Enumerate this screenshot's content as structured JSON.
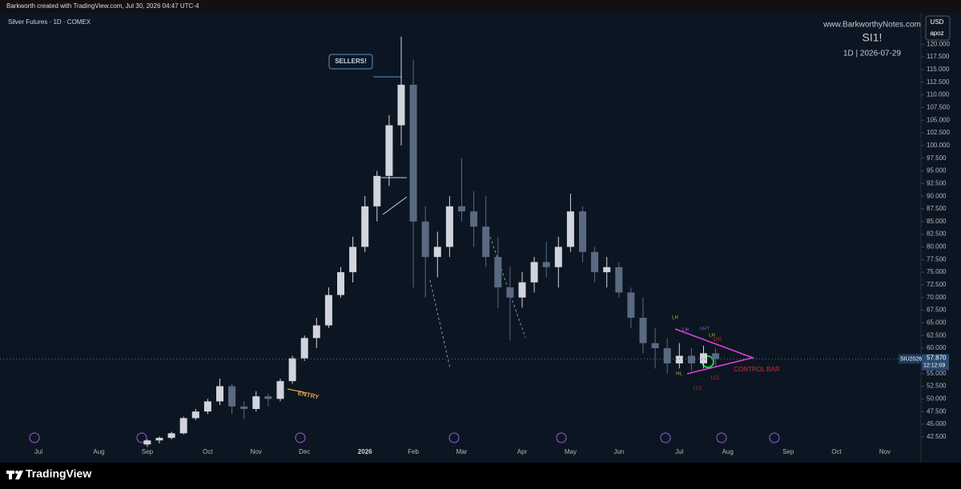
{
  "chart_data": {
    "type": "candlestick",
    "header": "Barkworth created with TradingView.com, Jul 30, 2026 04:47 UTC-4",
    "title": "Silver Futures · 1D · COMEX",
    "watermark": "www.BarkworthyNotes.com",
    "symbol_title": "SI1!",
    "subtitle": "1D  |  2026-07-29",
    "currency": "USD",
    "scale_label": "apoz",
    "brand": "TradingView",
    "symbol": "SIU2026",
    "last_price": {
      "value": 57.87,
      "label": "57.870"
    },
    "countdown": "12:12:09",
    "annotations": [
      "SELLERS!",
      "ENTRY",
      "CONTROL BAR",
      "LH",
      "LH",
      "HHT",
      "LH",
      "LH1",
      "HL",
      "LL1",
      "LL1"
    ],
    "categories": [
      "Jul",
      null,
      null,
      null,
      null,
      "Aug",
      null,
      null,
      null,
      "Sep",
      null,
      null,
      null,
      null,
      "Oct",
      null,
      null,
      null,
      "Nov",
      null,
      null,
      null,
      "Dec",
      null,
      null,
      null,
      null,
      "2026",
      null,
      null,
      null,
      "Feb",
      null,
      null,
      null,
      "Mar",
      null,
      null,
      null,
      null,
      "Apr",
      null,
      null,
      null,
      "May",
      null,
      null,
      null,
      "Jun",
      null,
      null,
      null,
      null,
      "Jul",
      null,
      null,
      null,
      "Aug",
      null,
      null,
      null,
      null,
      "Sep",
      null,
      null,
      null,
      "Oct",
      null,
      null,
      null,
      "Nov",
      null,
      null
    ],
    "open": [
      null,
      null,
      null,
      null,
      null,
      null,
      null,
      null,
      null,
      41,
      41.8,
      42.3,
      43.2,
      46.2,
      47.5,
      49.5,
      52.5,
      48.5,
      48,
      50.5,
      50,
      53.5,
      58,
      62,
      64.5,
      70.5,
      75,
      80,
      88,
      94,
      104,
      112,
      85,
      78,
      80,
      88,
      87,
      84,
      78,
      72,
      70,
      73,
      77,
      76,
      80,
      87,
      79,
      75,
      76,
      71,
      66,
      61,
      60,
      57,
      58.5,
      57,
      59,
      null,
      null,
      null,
      null,
      null,
      null,
      null,
      null,
      null,
      null,
      null,
      null,
      null,
      null,
      null,
      null
    ],
    "high": [
      null,
      null,
      null,
      null,
      null,
      null,
      null,
      null,
      null,
      42,
      42.6,
      43.5,
      46.5,
      48,
      50,
      54,
      53,
      49.5,
      51.5,
      51,
      54,
      58.5,
      62.5,
      66,
      72,
      76,
      82,
      90,
      95,
      106,
      121.5,
      117,
      88,
      83,
      90,
      97.5,
      91,
      90,
      82,
      76,
      75,
      78,
      81,
      82,
      90.5,
      88,
      80,
      78,
      77,
      72,
      70,
      64,
      62,
      61,
      60,
      60.5,
      60,
      null,
      null,
      null,
      null,
      null,
      null,
      null,
      null,
      null,
      null,
      null,
      null,
      null,
      null,
      null,
      null
    ],
    "low": [
      null,
      null,
      null,
      null,
      null,
      null,
      null,
      null,
      null,
      40.5,
      41.2,
      42,
      43,
      45.8,
      47,
      48.8,
      47,
      46,
      47.5,
      48.5,
      49.5,
      53,
      57.5,
      60,
      64,
      70,
      73,
      79,
      85,
      92,
      100,
      72,
      70,
      74,
      78,
      85,
      80,
      76,
      68,
      61.5,
      68,
      71,
      74,
      72,
      79,
      77,
      73,
      72,
      70,
      64,
      59,
      56,
      55,
      56,
      55.5,
      56,
      56.5,
      null,
      null,
      null,
      null,
      null,
      null,
      null,
      null,
      null,
      null,
      null,
      null,
      null,
      null,
      null,
      null
    ],
    "close": [
      null,
      null,
      null,
      null,
      null,
      null,
      null,
      null,
      null,
      41.8,
      42.3,
      43.2,
      46.2,
      47.5,
      49.5,
      52.5,
      48.5,
      48,
      50.5,
      50,
      53.5,
      58,
      62,
      64.5,
      70.5,
      75,
      80,
      88,
      94,
      104,
      112,
      85,
      78,
      80,
      88,
      87,
      84,
      78,
      72,
      70,
      73,
      77,
      76,
      80,
      87,
      79,
      75,
      76,
      71,
      66,
      61,
      60,
      57,
      58.5,
      57,
      59,
      57.87,
      null,
      null,
      null,
      null,
      null,
      null,
      null,
      null,
      null,
      null,
      null,
      null,
      null,
      null,
      null,
      null
    ],
    "up_color": "#d1d4dc",
    "down_color": "#5a6a82",
    "ylim": [
      39,
      126.2
    ],
    "yticks": [
      {
        "value": 42.5,
        "label": "42.500"
      },
      {
        "value": 45,
        "label": "45.000"
      },
      {
        "value": 47.5,
        "label": "47.500"
      },
      {
        "value": 50,
        "label": "50.000"
      },
      {
        "value": 52.5,
        "label": "52.500"
      },
      {
        "value": 55,
        "label": "55.000"
      },
      {
        "value": 57.5,
        "label": "57.500"
      },
      {
        "value": 60,
        "label": "60.000"
      },
      {
        "value": 62.5,
        "label": "62.500"
      },
      {
        "value": 65,
        "label": "65.000"
      },
      {
        "value": 67.5,
        "label": "67.500"
      },
      {
        "value": 70,
        "label": "70.000"
      },
      {
        "value": 72.5,
        "label": "72.500"
      },
      {
        "value": 75,
        "label": "75.000"
      },
      {
        "value": 77.5,
        "label": "77.500"
      },
      {
        "value": 80,
        "label": "80.000"
      },
      {
        "value": 82.5,
        "label": "82.500"
      },
      {
        "value": 85,
        "label": "85.000"
      },
      {
        "value": 87.5,
        "label": "87.500"
      },
      {
        "value": 90,
        "label": "90.000"
      },
      {
        "value": 92.5,
        "label": "92.500"
      },
      {
        "value": 95,
        "label": "95.000"
      },
      {
        "value": 97.5,
        "label": "97.500"
      },
      {
        "value": 100,
        "label": "100.000"
      },
      {
        "value": 102.5,
        "label": "102.500"
      },
      {
        "value": 105,
        "label": "105.000"
      },
      {
        "value": 107.5,
        "label": "107.500"
      },
      {
        "value": 110,
        "label": "110.000"
      },
      {
        "value": 112.5,
        "label": "112.500"
      },
      {
        "value": 115,
        "label": "115.000"
      },
      {
        "value": 117.5,
        "label": "117.500"
      },
      {
        "value": 120,
        "label": "120.000"
      }
    ]
  }
}
